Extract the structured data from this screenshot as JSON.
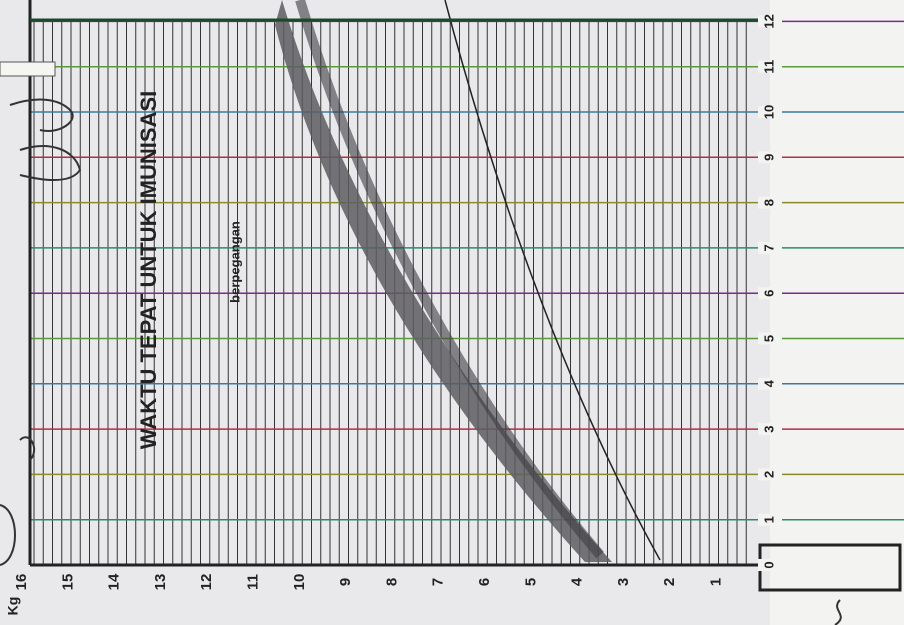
{
  "weight_axis": {
    "unit": "Kg",
    "ticks": [
      16,
      15,
      14,
      13,
      12,
      11,
      10,
      9,
      8,
      7,
      6,
      5,
      4,
      3,
      2,
      1
    ]
  },
  "age_axis": {
    "ticks": [
      0,
      1,
      2,
      3,
      4,
      5,
      6,
      7,
      8,
      9,
      10,
      11,
      12
    ]
  },
  "labels": {
    "immunization": "WAKTU TEPAT UNTUK IMUNISASI",
    "milestone": "berpegangan"
  }
}
